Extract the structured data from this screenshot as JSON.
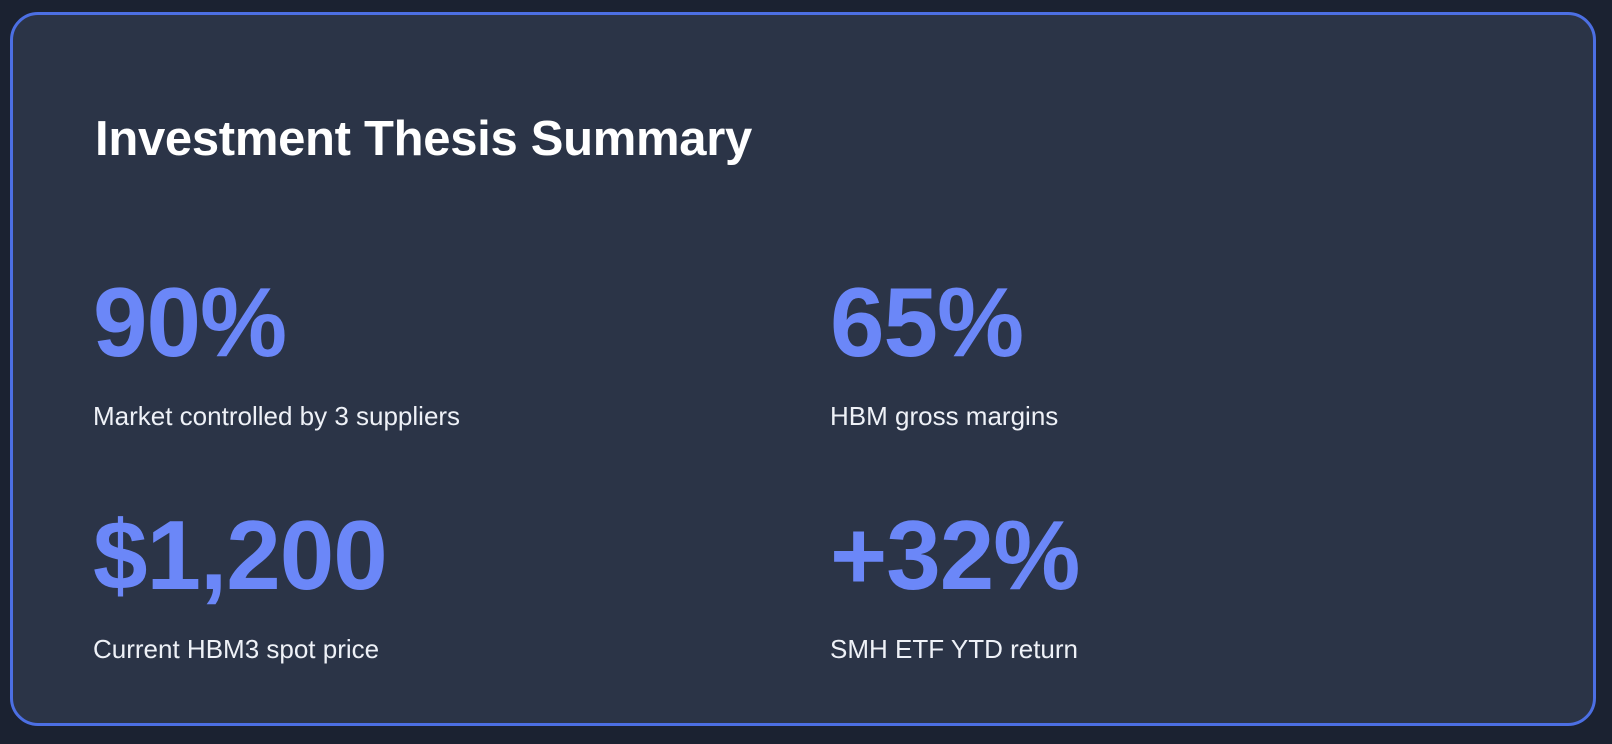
{
  "card": {
    "title": "Investment Thesis Summary",
    "stats": [
      {
        "value": "90%",
        "label": "Market controlled by 3 suppliers"
      },
      {
        "value": "65%",
        "label": "HBM gross margins"
      },
      {
        "value": "$1,200",
        "label": "Current HBM3 spot price"
      },
      {
        "value": "+32%",
        "label": "SMH ETF YTD return"
      }
    ]
  }
}
